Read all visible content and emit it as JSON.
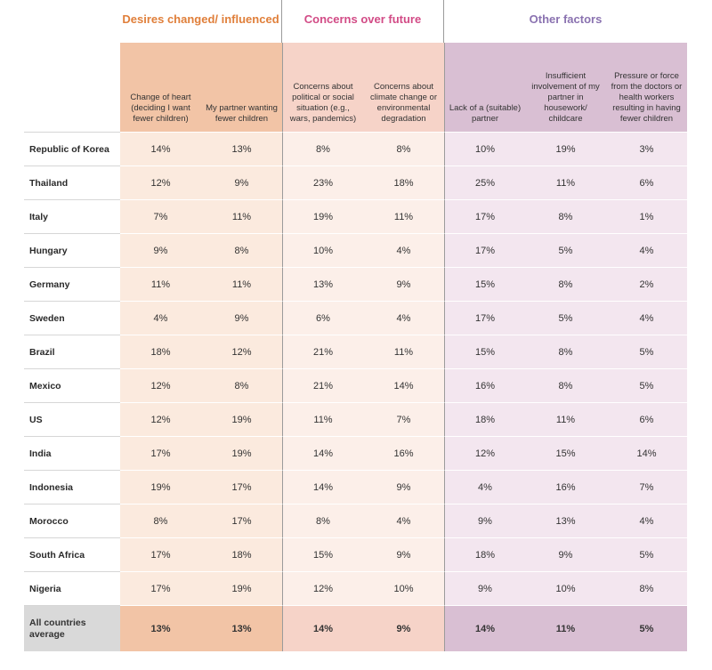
{
  "groups": {
    "desires": "Desires changed/ influenced",
    "concerns": "Concerns over future",
    "other": "Other factors"
  },
  "columns": [
    "Change of heart (deciding I want fewer children)",
    "My partner wanting fewer children",
    "Concerns about political or social situation (e.g., wars, pandemics)",
    "Concerns about climate change or environmental degradation",
    "Lack of a (suitable) partner",
    "Insufficient involvement of my partner in housework/ childcare",
    "Pressure or force from the doctors or health workers resulting in having fewer children"
  ],
  "rows": [
    {
      "country": "Republic of Korea",
      "values": [
        "14%",
        "13%",
        "8%",
        "8%",
        "10%",
        "19%",
        "3%"
      ]
    },
    {
      "country": "Thailand",
      "values": [
        "12%",
        "9%",
        "23%",
        "18%",
        "25%",
        "11%",
        "6%"
      ]
    },
    {
      "country": "Italy",
      "values": [
        "7%",
        "11%",
        "19%",
        "11%",
        "17%",
        "8%",
        "1%"
      ]
    },
    {
      "country": "Hungary",
      "values": [
        "9%",
        "8%",
        "10%",
        "4%",
        "17%",
        "5%",
        "4%"
      ]
    },
    {
      "country": "Germany",
      "values": [
        "11%",
        "11%",
        "13%",
        "9%",
        "15%",
        "8%",
        "2%"
      ]
    },
    {
      "country": "Sweden",
      "values": [
        "4%",
        "9%",
        "6%",
        "4%",
        "17%",
        "5%",
        "4%"
      ]
    },
    {
      "country": "Brazil",
      "values": [
        "18%",
        "12%",
        "21%",
        "11%",
        "15%",
        "8%",
        "5%"
      ]
    },
    {
      "country": "Mexico",
      "values": [
        "12%",
        "8%",
        "21%",
        "14%",
        "16%",
        "8%",
        "5%"
      ]
    },
    {
      "country": "US",
      "values": [
        "12%",
        "19%",
        "11%",
        "7%",
        "18%",
        "11%",
        "6%"
      ]
    },
    {
      "country": "India",
      "values": [
        "17%",
        "19%",
        "14%",
        "16%",
        "12%",
        "15%",
        "14%"
      ]
    },
    {
      "country": "Indonesia",
      "values": [
        "19%",
        "17%",
        "14%",
        "9%",
        "4%",
        "16%",
        "7%"
      ]
    },
    {
      "country": "Morocco",
      "values": [
        "8%",
        "17%",
        "8%",
        "4%",
        "9%",
        "13%",
        "4%"
      ]
    },
    {
      "country": "South Africa",
      "values": [
        "17%",
        "18%",
        "15%",
        "9%",
        "18%",
        "9%",
        "5%"
      ]
    },
    {
      "country": "Nigeria",
      "values": [
        "17%",
        "19%",
        "12%",
        "10%",
        "9%",
        "10%",
        "8%"
      ]
    }
  ],
  "average": {
    "label": "All countries average",
    "values": [
      "13%",
      "13%",
      "14%",
      "9%",
      "14%",
      "11%",
      "5%"
    ]
  },
  "colors": {
    "header": [
      "#f2c4a6",
      "#f2c4a6",
      "#f6d3c8",
      "#f6d3c8",
      "#d9bfd3",
      "#d9bfd3",
      "#d9bfd3"
    ],
    "body": [
      "#fbeade",
      "#fbeade",
      "#fcefe9",
      "#fcefe9",
      "#f3e6ef",
      "#f3e6ef",
      "#f3e6ef"
    ],
    "average": [
      "#f2c4a6",
      "#f2c4a6",
      "#f6d3c8",
      "#f6d3c8",
      "#d9bfd3",
      "#d9bfd3",
      "#d9bfd3"
    ]
  }
}
